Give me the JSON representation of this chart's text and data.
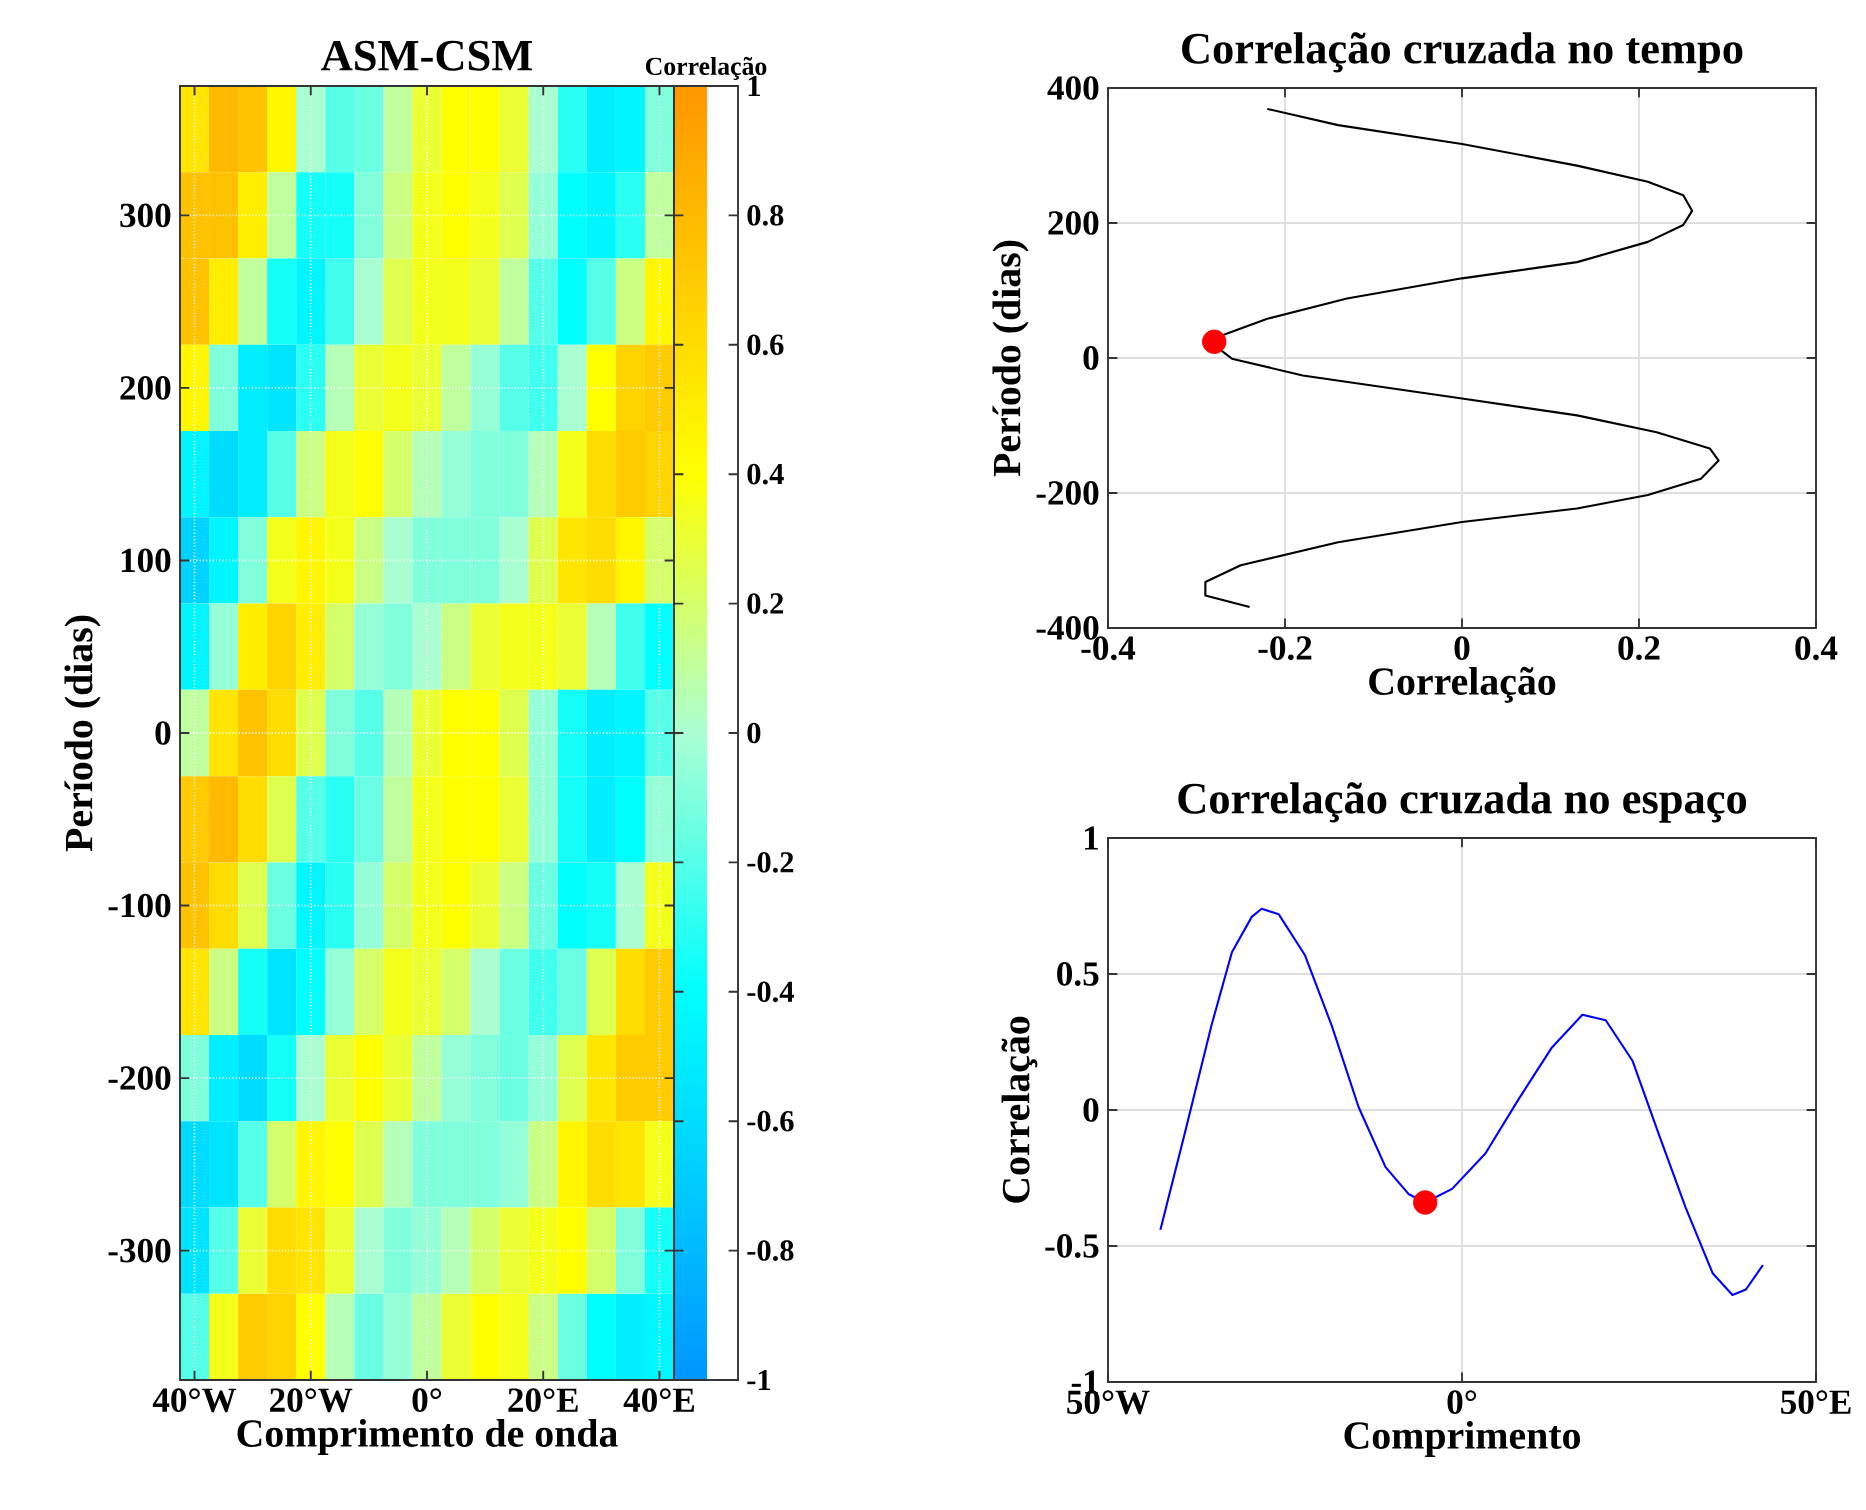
{
  "chart_data": [
    {
      "type": "heatmap",
      "title": "ASM-CSM",
      "xlabel": "Comprimento de onda",
      "ylabel": "Período (dias)",
      "clabel": "Correlação",
      "categories": [
        "40°W",
        null,
        null,
        null,
        "20°W",
        null,
        null,
        null,
        "0°",
        null,
        null,
        null,
        "20°E",
        null,
        null,
        null,
        "40°E"
      ],
      "y_categories": [
        null,
        "300",
        null,
        "200",
        null,
        "100",
        null,
        "0",
        null,
        "-100",
        null,
        "-200",
        null,
        "-300",
        null
      ],
      "clim": [
        -1,
        1
      ],
      "cticks": [
        -1,
        -0.8,
        -0.6,
        -0.4,
        -0.2,
        0,
        0.2,
        0.4,
        0.6,
        0.8,
        1
      ],
      "grid": true,
      "cells": [
        [
          0.55,
          0.8,
          0.75,
          0.45,
          0.0,
          -0.2,
          -0.15,
          0.1,
          0.3,
          0.4,
          0.4,
          0.3,
          0.0,
          -0.3,
          -0.5,
          -0.45,
          -0.1
        ],
        [
          0.75,
          0.75,
          0.5,
          0.1,
          -0.35,
          -0.35,
          -0.1,
          0.15,
          0.35,
          0.4,
          0.35,
          0.25,
          -0.05,
          -0.4,
          -0.45,
          -0.3,
          0.1
        ],
        [
          0.75,
          0.5,
          0.1,
          -0.35,
          -0.45,
          -0.25,
          0.0,
          0.25,
          0.35,
          0.35,
          0.3,
          0.1,
          -0.2,
          -0.4,
          -0.2,
          0.15,
          0.45
        ],
        [
          0.45,
          -0.1,
          -0.5,
          -0.55,
          -0.3,
          0.05,
          0.3,
          0.35,
          0.3,
          0.1,
          -0.05,
          -0.2,
          -0.25,
          0.0,
          0.4,
          0.65,
          0.7
        ],
        [
          -0.45,
          -0.6,
          -0.5,
          -0.2,
          0.15,
          0.35,
          0.4,
          0.2,
          0.05,
          -0.05,
          -0.1,
          -0.1,
          0.05,
          0.35,
          0.6,
          0.7,
          0.65
        ],
        [
          -0.65,
          -0.45,
          -0.1,
          0.35,
          0.45,
          0.35,
          0.15,
          0.0,
          -0.1,
          -0.1,
          -0.1,
          0.0,
          0.25,
          0.55,
          0.6,
          0.45,
          0.2
        ],
        [
          -0.45,
          -0.05,
          0.5,
          0.65,
          0.5,
          0.2,
          -0.05,
          -0.1,
          0.0,
          0.15,
          0.3,
          0.35,
          0.35,
          0.3,
          0.05,
          -0.25,
          -0.4
        ],
        [
          0.1,
          0.55,
          0.75,
          0.6,
          0.25,
          -0.1,
          -0.2,
          0.05,
          0.3,
          0.4,
          0.4,
          0.25,
          -0.05,
          -0.35,
          -0.5,
          -0.45,
          -0.2
        ],
        [
          0.7,
          0.8,
          0.6,
          0.25,
          -0.2,
          -0.3,
          -0.15,
          0.1,
          0.35,
          0.4,
          0.4,
          0.3,
          -0.05,
          -0.35,
          -0.5,
          -0.4,
          -0.05
        ],
        [
          0.75,
          0.6,
          0.25,
          -0.15,
          -0.45,
          -0.3,
          -0.05,
          0.2,
          0.35,
          0.4,
          0.3,
          0.15,
          -0.15,
          -0.4,
          -0.35,
          0.0,
          0.35
        ],
        [
          0.55,
          0.15,
          -0.35,
          -0.55,
          -0.4,
          -0.05,
          0.2,
          0.35,
          0.3,
          0.2,
          0.0,
          -0.15,
          -0.25,
          -0.15,
          0.25,
          0.6,
          0.7
        ],
        [
          -0.1,
          -0.5,
          -0.6,
          -0.35,
          0.0,
          0.3,
          0.4,
          0.3,
          0.1,
          -0.05,
          -0.1,
          -0.15,
          -0.05,
          0.25,
          0.55,
          0.7,
          0.7
        ],
        [
          -0.6,
          -0.55,
          -0.2,
          0.2,
          0.45,
          0.4,
          0.25,
          0.05,
          -0.1,
          -0.1,
          -0.1,
          -0.05,
          0.15,
          0.45,
          0.6,
          0.55,
          0.35
        ],
        [
          -0.55,
          -0.2,
          0.3,
          0.6,
          0.55,
          0.3,
          0.0,
          -0.1,
          -0.05,
          0.05,
          0.2,
          0.3,
          0.35,
          0.4,
          0.2,
          -0.1,
          -0.35
        ],
        [
          -0.2,
          0.35,
          0.7,
          0.65,
          0.4,
          0.05,
          -0.15,
          -0.05,
          0.1,
          0.3,
          0.4,
          0.35,
          0.15,
          -0.15,
          -0.4,
          -0.5,
          -0.45
        ]
      ]
    },
    {
      "type": "line",
      "title": "Correlação cruzada no tempo",
      "xlabel": "Correlação",
      "ylabel": "Período (dias)",
      "xlim": [
        -0.4,
        0.4
      ],
      "ylim": [
        -400,
        400
      ],
      "xticks": [
        -0.4,
        -0.2,
        0,
        0.2,
        0.4
      ],
      "yticks": [
        -400,
        -200,
        0,
        200,
        400
      ],
      "grid": true,
      "series": [
        {
          "type": "line",
          "color": "#000000",
          "x": [
            -0.22,
            -0.14,
            0,
            0.13,
            0.21,
            0.25,
            0.26,
            0.25,
            0.21,
            0.13,
            0,
            -0.13,
            -0.22,
            -0.27,
            -0.28,
            -0.26,
            -0.18,
            0,
            0.13,
            0.22,
            0.28,
            0.29,
            0.27,
            0.21,
            0.13,
            0,
            -0.14,
            -0.25,
            -0.29,
            -0.29,
            -0.24
          ],
          "values": [
            369,
            345,
            317,
            285,
            261,
            241,
            218,
            197,
            172,
            142,
            118,
            88,
            58,
            34,
            19,
            -1,
            -26,
            -60,
            -85,
            -110,
            -134,
            -152,
            -179,
            -203,
            -223,
            -243,
            -273,
            -307,
            -332,
            -352,
            -369
          ]
        },
        {
          "type": "scatter",
          "color": "#ff0000",
          "x": [
            -0.28
          ],
          "values": [
            24
          ]
        }
      ]
    },
    {
      "type": "line",
      "title": "Correlação cruzada no espaço",
      "xlabel": "Comprimento",
      "ylabel": "Correlação",
      "xlim": [
        -50,
        50
      ],
      "ylim": [
        -1,
        1
      ],
      "xticks": [
        {
          "value": -50,
          "label": "50°W"
        },
        {
          "value": 0,
          "label": "0°"
        },
        {
          "value": 50,
          "label": "50°E"
        }
      ],
      "yticks": [
        -1,
        -0.5,
        0,
        0.5,
        1
      ],
      "grid": true,
      "series": [
        {
          "type": "line",
          "color": "#0000ff",
          "x": [
            -42.6,
            -39.2,
            -35.4,
            -32.5,
            -29.7,
            -28.3,
            -25.9,
            -22.2,
            -18.4,
            -14.6,
            -10.8,
            -7.5,
            -5.2,
            -1.4,
            3.3,
            8.0,
            12.7,
            17.0,
            20.3,
            24.1,
            27.8,
            31.6,
            35.4,
            38.2,
            40.1,
            42.5
          ],
          "values": [
            -0.44,
            -0.09,
            0.31,
            0.58,
            0.71,
            0.74,
            0.72,
            0.57,
            0.31,
            0.01,
            -0.21,
            -0.31,
            -0.34,
            -0.29,
            -0.16,
            0.04,
            0.23,
            0.35,
            0.33,
            0.18,
            -0.09,
            -0.36,
            -0.6,
            -0.68,
            -0.66,
            -0.57
          ]
        },
        {
          "type": "scatter",
          "color": "#ff0000",
          "x": [
            -5.2
          ],
          "values": [
            -0.34
          ]
        }
      ]
    }
  ]
}
